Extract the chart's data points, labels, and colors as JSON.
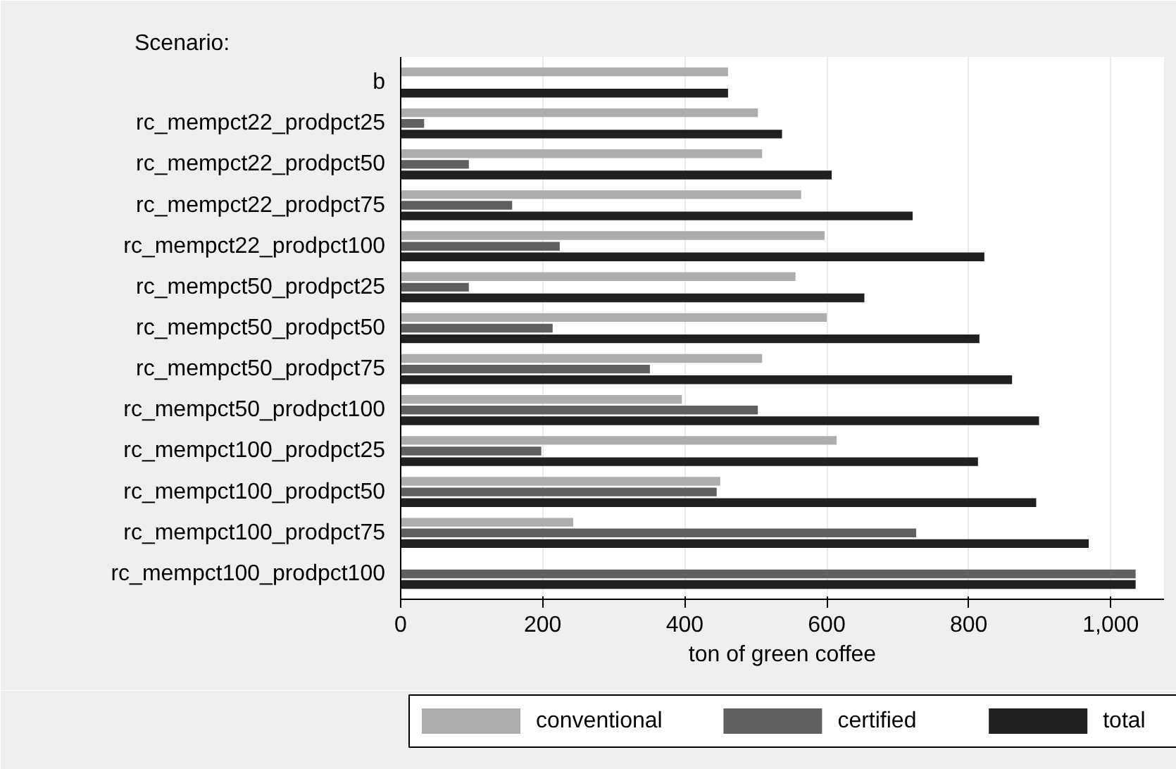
{
  "chart_data": {
    "type": "bar",
    "orientation": "horizontal",
    "ylabel": "Scenario:",
    "xlabel": "ton of green coffee",
    "categories": [
      "b",
      "rc_mempct22_prodpct25",
      "rc_mempct22_prodpct50",
      "rc_mempct22_prodpct75",
      "rc_mempct22_prodpct100",
      "rc_mempct50_prodpct25",
      "rc_mempct50_prodpct50",
      "rc_mempct50_prodpct75",
      "rc_mempct50_prodpct100",
      "rc_mempct100_prodpct25",
      "rc_mempct100_prodpct50",
      "rc_mempct100_prodpct75",
      "rc_mempct100_prodpct100"
    ],
    "series": [
      {
        "name": "conventional",
        "color": "#adadad",
        "values": [
          461,
          503,
          509,
          564,
          597,
          556,
          600,
          509,
          396,
          614,
          450,
          243,
          0
        ]
      },
      {
        "name": "certified",
        "color": "#606060",
        "values": [
          0,
          33,
          96,
          157,
          224,
          96,
          214,
          351,
          503,
          198,
          445,
          726,
          1035
        ]
      },
      {
        "name": "total",
        "color": "#202020",
        "values": [
          461,
          537,
          607,
          721,
          822,
          653,
          815,
          861,
          899,
          813,
          895,
          969,
          1035
        ]
      }
    ],
    "xlim": [
      0,
      1075
    ],
    "xticks": [
      0,
      200,
      400,
      600,
      800,
      {
        "value": 1000,
        "label": "1,000"
      }
    ],
    "grid": "x",
    "legend": "bottom"
  }
}
